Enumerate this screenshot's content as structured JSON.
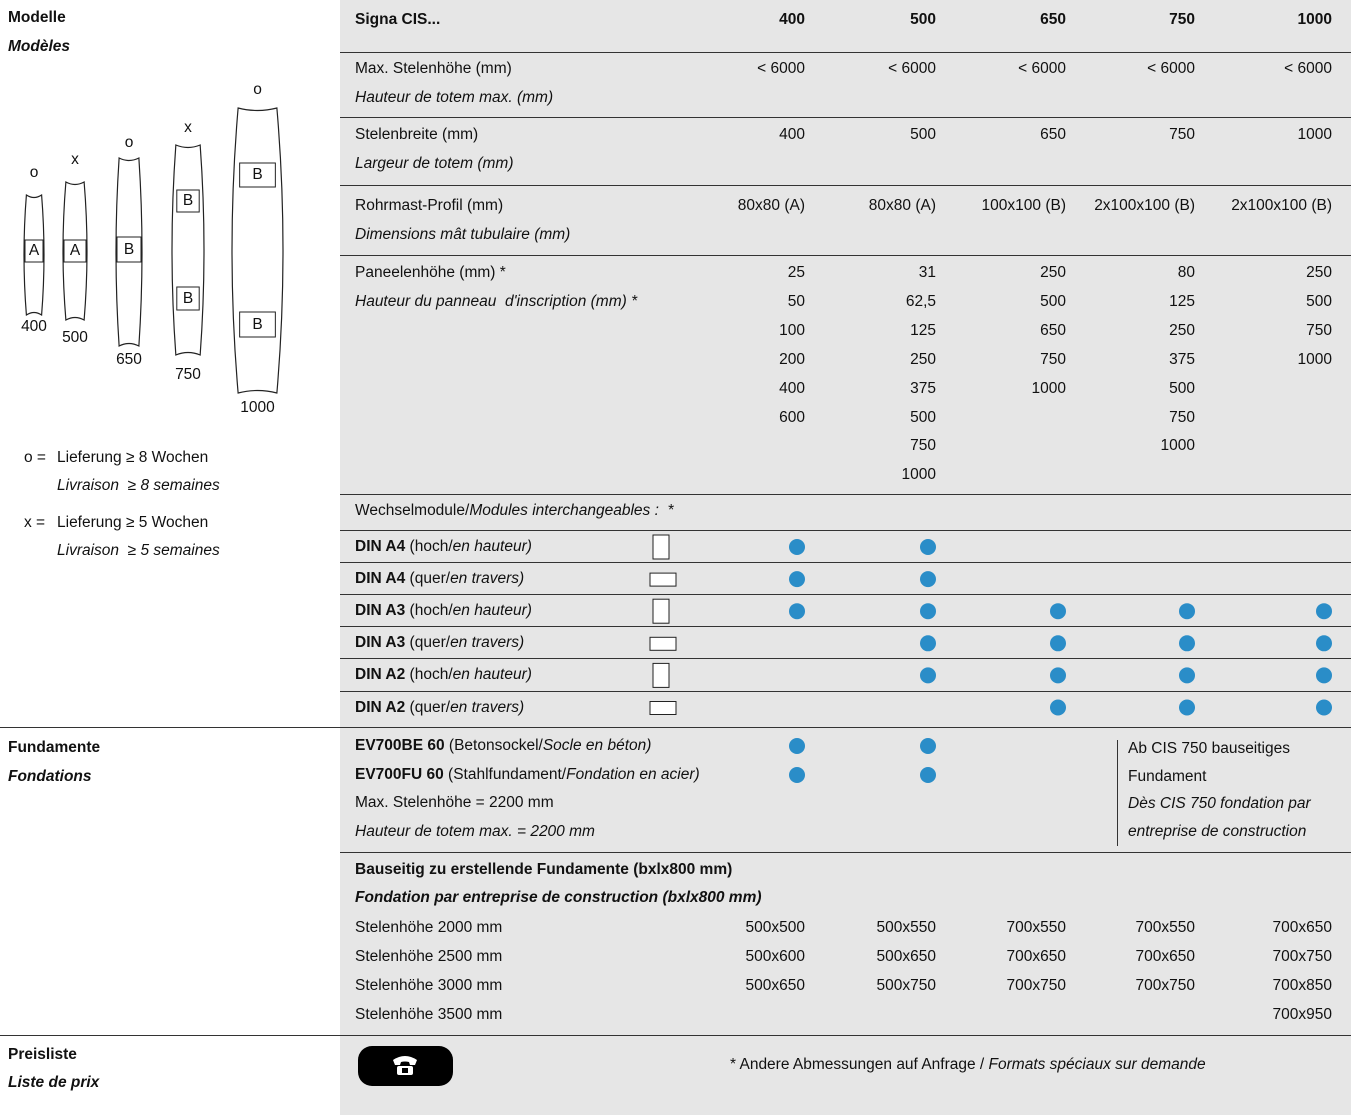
{
  "modelle": {
    "title": "Modelle",
    "title_fr": "Modèles"
  },
  "models": [
    {
      "mark": "o",
      "size": "400",
      "profiles": [
        "A"
      ]
    },
    {
      "mark": "x",
      "size": "500",
      "profiles": [
        "A"
      ]
    },
    {
      "mark": "o",
      "size": "650",
      "profiles": [
        "B"
      ]
    },
    {
      "mark": "x",
      "size": "750",
      "profiles": [
        "B",
        "B"
      ]
    },
    {
      "mark": "o",
      "size": "1000",
      "profiles": [
        "B",
        "B"
      ]
    }
  ],
  "legend": [
    {
      "symbol": "o =",
      "de": "Lieferung ≥ 8 Wochen",
      "fr": "Livraison  ≥ 8 semaines"
    },
    {
      "symbol": "x =",
      "de": "Lieferung ≥ 5 Wochen",
      "fr": "Livraison  ≥ 5 semaines"
    }
  ],
  "table": {
    "header": [
      "Signa CIS...",
      "400",
      "500",
      "650",
      "750",
      "1000"
    ],
    "rows": [
      {
        "de": "Max. Stelenhöhe (mm)",
        "fr": "Hauteur de totem max. (mm)",
        "values": [
          "< 6000",
          "< 6000",
          "< 6000",
          "< 6000",
          "< 6000"
        ]
      },
      {
        "de": "Stelenbreite (mm)",
        "fr": "Largeur de totem (mm)",
        "values": [
          "400",
          "500",
          "650",
          "750",
          "1000"
        ]
      },
      {
        "de": "Rohrmast-Profil (mm)",
        "fr": "Dimensions mât tubulaire (mm)",
        "values": [
          "80x80 (A)",
          "80x80 (A)",
          "100x100 (B)",
          "2x100x100 (B)",
          "2x100x100 (B)"
        ]
      }
    ],
    "panel": {
      "de": "Paneelenhöhe (mm) *",
      "fr": "Hauteur du panneau  d'inscription (mm) *",
      "values": [
        [
          "25",
          "50",
          "100",
          "200",
          "400",
          "600"
        ],
        [
          "31",
          "62,5",
          "125",
          "250",
          "375",
          "500",
          "750",
          "1000"
        ],
        [
          "250",
          "500",
          "650",
          "750",
          "1000"
        ],
        [
          "80",
          "125",
          "250",
          "375",
          "500",
          "750",
          "1000"
        ],
        [
          "250",
          "500",
          "750",
          "1000"
        ]
      ]
    }
  },
  "modules": {
    "title_de": "Wechselmodule/",
    "title_fr": "Modules interchangeables :  *",
    "rows": [
      {
        "code": "DIN A4",
        "de": " (hoch/",
        "fr": "en hauteur)",
        "orientation": "portrait",
        "available": [
          true,
          true,
          false,
          false,
          false
        ]
      },
      {
        "code": "DIN A4",
        "de": " (quer/",
        "fr": "en travers)",
        "orientation": "landscape",
        "available": [
          true,
          true,
          false,
          false,
          false
        ]
      },
      {
        "code": "DIN A3",
        "de": " (hoch/",
        "fr": "en hauteur)",
        "orientation": "portrait",
        "available": [
          true,
          true,
          true,
          true,
          true
        ]
      },
      {
        "code": "DIN A3",
        "de": " (quer/",
        "fr": "en travers)",
        "orientation": "landscape",
        "available": [
          false,
          true,
          true,
          true,
          true
        ]
      },
      {
        "code": "DIN A2",
        "de": " (hoch/",
        "fr": "en hauteur)",
        "orientation": "portrait",
        "available": [
          false,
          true,
          true,
          true,
          true
        ]
      },
      {
        "code": "DIN A2",
        "de": " (quer/",
        "fr": "en travers)",
        "orientation": "landscape",
        "available": [
          false,
          false,
          true,
          true,
          true
        ]
      }
    ]
  },
  "fundamente": {
    "title": "Fundamente",
    "title_fr": "Fondations",
    "rows": [
      {
        "code": "EV700BE 60",
        "de": " (Betonsockel/",
        "fr": "Socle en béton)",
        "available": [
          true,
          true,
          false,
          false,
          false
        ]
      },
      {
        "code": "EV700FU 60",
        "de": " (Stahlfundament/",
        "fr": "Fondation en acier)",
        "available": [
          true,
          true,
          false,
          false,
          false
        ]
      }
    ],
    "max_de": "Max. Stelenhöhe = 2200 mm",
    "max_fr": "Hauteur de totem max. = 2200 mm",
    "note": [
      "Ab CIS 750 bauseitiges",
      "Fundament"
    ],
    "note_fr": [
      "Dès CIS 750 fondation par",
      "entreprise de construction"
    ]
  },
  "site": {
    "title_de": "Bauseitig zu erstellende Fundamente (bxlx800 mm)",
    "title_fr": "Fondation par entreprise de construction (bxlx800 mm)",
    "rows": [
      {
        "label": "Stelenhöhe 2000 mm",
        "values": [
          "500x500",
          "500x550",
          "700x550",
          "700x550",
          "700x650"
        ]
      },
      {
        "label": "Stelenhöhe 2500 mm",
        "values": [
          "500x600",
          "500x650",
          "700x650",
          "700x650",
          "700x750"
        ]
      },
      {
        "label": "Stelenhöhe 3000 mm",
        "values": [
          "500x650",
          "500x750",
          "700x750",
          "700x750",
          "700x850"
        ]
      },
      {
        "label": "Stelenhöhe 3500 mm",
        "values": [
          null,
          null,
          null,
          null,
          "700x950"
        ]
      }
    ]
  },
  "preisliste": {
    "title": "Preisliste",
    "title_fr": "Liste de prix",
    "footnote": "* Andere Abmessungen auf Anfrage / ",
    "footnote_fr": "Formats spéciaux sur demande"
  }
}
